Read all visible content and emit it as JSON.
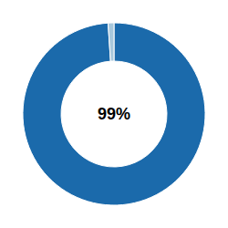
{
  "chart_data": {
    "type": "donut",
    "values": [
      477,
      5
    ],
    "colors": [
      "#1b6aab",
      "#a8c8dc"
    ],
    "annotations": [
      "99%"
    ]
  }
}
